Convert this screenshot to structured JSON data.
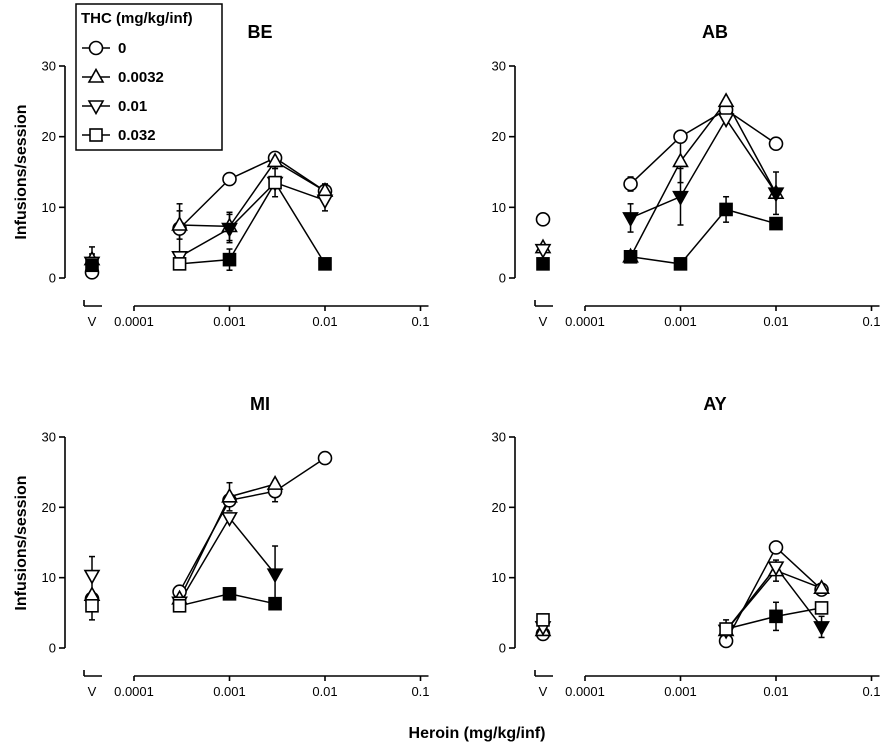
{
  "legend": {
    "title": "THC (mg/kg/inf)",
    "entries": [
      {
        "label": "0",
        "marker": "circle"
      },
      {
        "label": "0.0032",
        "marker": "triangle-up"
      },
      {
        "label": "0.01",
        "marker": "triangle-down"
      },
      {
        "label": "0.032",
        "marker": "square"
      }
    ]
  },
  "xlabel": "Heroin (mg/kg/inf)",
  "ylabel": "Infusions/session",
  "chart_data": [
    {
      "type": "scatter",
      "title": "BE",
      "xscale": "log",
      "xticks": [
        "V",
        "0.0001",
        "0.001",
        "0.01",
        "0.1"
      ],
      "yticks": [
        "0",
        "10",
        "20",
        "30"
      ],
      "ylim": [
        0,
        30
      ],
      "vehicle": [
        {
          "series": "0",
          "y": 0.8,
          "err": 0
        },
        {
          "series": "0.0032",
          "y": 2.6,
          "err": 1.8
        },
        {
          "series": "0.01",
          "y": 2.2,
          "err": 1.2
        },
        {
          "series": "0.032",
          "y": 1.8,
          "err": 0
        }
      ],
      "series": [
        {
          "name": "0",
          "marker": "circle",
          "points": [
            {
              "x": 0.0003,
              "y": 7.0,
              "err": 3.5
            },
            {
              "x": 0.001,
              "y": 14.0,
              "err": 0
            },
            {
              "x": 0.003,
              "y": 17.0,
              "err": 0
            },
            {
              "x": 0.01,
              "y": 12.3,
              "err": 1.0
            }
          ]
        },
        {
          "name": "0.0032",
          "marker": "triangle-up",
          "points": [
            {
              "x": 0.0003,
              "y": 7.5,
              "err": 2.0
            },
            {
              "x": 0.001,
              "y": 7.3,
              "err": 2.0
            },
            {
              "x": 0.003,
              "y": 16.5,
              "err": 1.0
            },
            {
              "x": 0.01,
              "y": 12.3,
              "err": 1.0
            }
          ]
        },
        {
          "name": "0.01",
          "marker": "triangle-down",
          "points": [
            {
              "x": 0.0003,
              "y": 3.0,
              "err": 0
            },
            {
              "x": 0.001,
              "y": 7.0,
              "err": 2.0
            },
            {
              "x": 0.003,
              "y": 13.5,
              "err": 2.0
            },
            {
              "x": 0.01,
              "y": 11.0,
              "err": 1.5
            }
          ]
        },
        {
          "name": "0.032",
          "marker": "square",
          "points": [
            {
              "x": 0.0003,
              "y": 2.0,
              "err": 0
            },
            {
              "x": 0.001,
              "y": 2.6,
              "err": 1.5
            },
            {
              "x": 0.003,
              "y": 13.5,
              "err": 0
            },
            {
              "x": 0.01,
              "y": 2.0,
              "err": 0
            }
          ]
        }
      ]
    },
    {
      "type": "scatter",
      "title": "AB",
      "xscale": "log",
      "xticks": [
        "V",
        "0.0001",
        "0.001",
        "0.01",
        "0.1"
      ],
      "yticks": [
        "0",
        "10",
        "20",
        "30"
      ],
      "ylim": [
        0,
        30
      ],
      "vehicle": [
        {
          "series": "0",
          "y": 8.3,
          "err": 0
        },
        {
          "series": "0.0032",
          "y": 4.3,
          "err": 0
        },
        {
          "series": "0.01",
          "y": 4.0,
          "err": 0
        },
        {
          "series": "0.032",
          "y": 2.0,
          "err": 0
        }
      ],
      "series": [
        {
          "name": "0",
          "marker": "circle",
          "points": [
            {
              "x": 0.0003,
              "y": 13.3,
              "err": 1.0
            },
            {
              "x": 0.001,
              "y": 20.0,
              "err": 0
            },
            {
              "x": 0.003,
              "y": 23.8,
              "err": 0
            },
            {
              "x": 0.01,
              "y": 19.0,
              "err": 0
            }
          ]
        },
        {
          "name": "0.0032",
          "marker": "triangle-up",
          "points": [
            {
              "x": 0.0003,
              "y": 3.0,
              "err": 0
            },
            {
              "x": 0.001,
              "y": 16.5,
              "err": 3.0
            },
            {
              "x": 0.003,
              "y": 25.0,
              "err": 0
            },
            {
              "x": 0.01,
              "y": 12.0,
              "err": 0
            }
          ]
        },
        {
          "name": "0.01",
          "marker": "triangle-down",
          "points": [
            {
              "x": 0.0003,
              "y": 8.5,
              "err": 2.0
            },
            {
              "x": 0.001,
              "y": 11.5,
              "err": 4.0
            },
            {
              "x": 0.003,
              "y": 22.5,
              "err": 0
            },
            {
              "x": 0.01,
              "y": 12.0,
              "err": 3.0
            }
          ]
        },
        {
          "name": "0.032",
          "marker": "square",
          "points": [
            {
              "x": 0.0003,
              "y": 3.0,
              "err": 0
            },
            {
              "x": 0.001,
              "y": 2.0,
              "err": 0
            },
            {
              "x": 0.003,
              "y": 9.7,
              "err": 1.8
            },
            {
              "x": 0.01,
              "y": 7.7,
              "err": 0
            }
          ]
        }
      ]
    },
    {
      "type": "scatter",
      "title": "MI",
      "xscale": "log",
      "xticks": [
        "V",
        "0.0001",
        "0.001",
        "0.01",
        "0.1"
      ],
      "yticks": [
        "0",
        "10",
        "20",
        "30"
      ],
      "ylim": [
        0,
        30
      ],
      "vehicle": [
        {
          "series": "0",
          "y": 7.0,
          "err": 0
        },
        {
          "series": "0.0032",
          "y": 7.5,
          "err": 0
        },
        {
          "series": "0.01",
          "y": 10.3,
          "err": 2.7
        },
        {
          "series": "0.032",
          "y": 6.0,
          "err": 2.0
        }
      ],
      "series": [
        {
          "name": "0",
          "marker": "circle",
          "points": [
            {
              "x": 0.0003,
              "y": 8.0,
              "err": 0
            },
            {
              "x": 0.001,
              "y": 21.0,
              "err": 0
            },
            {
              "x": 0.003,
              "y": 22.3,
              "err": 1.5
            },
            {
              "x": 0.01,
              "y": 27.0,
              "err": 0
            }
          ]
        },
        {
          "name": "0.0032",
          "marker": "triangle-up",
          "points": [
            {
              "x": 0.0003,
              "y": 7.0,
              "err": 0
            },
            {
              "x": 0.001,
              "y": 21.5,
              "err": 2.0
            },
            {
              "x": 0.003,
              "y": 23.3,
              "err": 0
            }
          ]
        },
        {
          "name": "0.01",
          "marker": "triangle-down",
          "points": [
            {
              "x": 0.0003,
              "y": 6.5,
              "err": 0
            },
            {
              "x": 0.001,
              "y": 18.5,
              "err": 0
            },
            {
              "x": 0.003,
              "y": 10.5,
              "err": 4.0
            }
          ]
        },
        {
          "name": "0.032",
          "marker": "square",
          "points": [
            {
              "x": 0.0003,
              "y": 6.0,
              "err": 0
            },
            {
              "x": 0.001,
              "y": 7.7,
              "err": 0
            },
            {
              "x": 0.003,
              "y": 6.3,
              "err": 0
            }
          ]
        }
      ]
    },
    {
      "type": "scatter",
      "title": "AY",
      "xscale": "log",
      "xticks": [
        "V",
        "0.0001",
        "0.001",
        "0.01",
        "0.1"
      ],
      "yticks": [
        "0",
        "10",
        "20",
        "30"
      ],
      "ylim": [
        0,
        30
      ],
      "vehicle": [
        {
          "series": "0",
          "y": 2.0,
          "err": 0
        },
        {
          "series": "0.0032",
          "y": 2.5,
          "err": 0
        },
        {
          "series": "0.01",
          "y": 3.0,
          "err": 0
        },
        {
          "series": "0.032",
          "y": 4.0,
          "err": 0
        }
      ],
      "series": [
        {
          "name": "0",
          "marker": "circle",
          "points": [
            {
              "x": 0.003,
              "y": 1.0,
              "err": 0
            },
            {
              "x": 0.01,
              "y": 14.3,
              "err": 0
            },
            {
              "x": 0.03,
              "y": 8.3,
              "err": 0
            }
          ]
        },
        {
          "name": "0.0032",
          "marker": "triangle-up",
          "points": [
            {
              "x": 0.003,
              "y": 2.5,
              "err": 1.5
            },
            {
              "x": 0.01,
              "y": 11.0,
              "err": 1.5
            },
            {
              "x": 0.03,
              "y": 8.5,
              "err": 0
            }
          ]
        },
        {
          "name": "0.01",
          "marker": "triangle-down",
          "points": [
            {
              "x": 0.003,
              "y": 2.5,
              "err": 0
            },
            {
              "x": 0.01,
              "y": 11.5,
              "err": 0
            },
            {
              "x": 0.03,
              "y": 3.0,
              "err": 1.5
            }
          ]
        },
        {
          "name": "0.032",
          "marker": "square",
          "points": [
            {
              "x": 0.003,
              "y": 2.7,
              "err": 0
            },
            {
              "x": 0.01,
              "y": 4.5,
              "err": 2.0
            },
            {
              "x": 0.03,
              "y": 5.7,
              "err": 0
            }
          ]
        }
      ]
    }
  ]
}
